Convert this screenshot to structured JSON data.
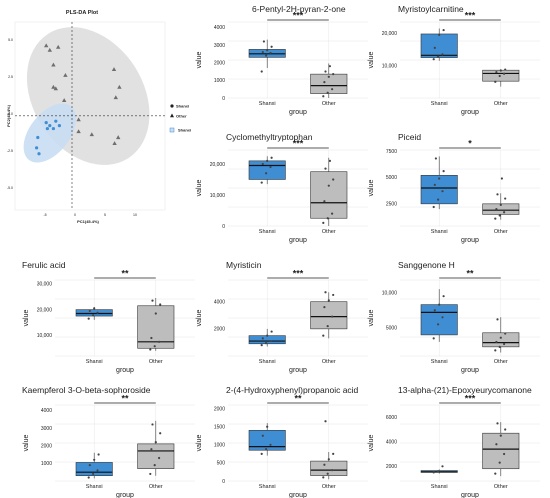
{
  "colors": {
    "shanxi": "#3F8ED4",
    "other": "#BDBDBD",
    "ellipse_shanxi": "#C9DDF3",
    "ellipse_other": "#DCDCDC",
    "grid": "#E6E6E6",
    "axis": "#333333"
  },
  "pls": {
    "title": "PLS-DA Plot",
    "xlabel": "PC1(45.4%)",
    "ylabel": "PC2(45.4%)",
    "xticks": [
      "-5",
      "0",
      "5",
      "10"
    ],
    "yticks": [
      "5.0",
      "2.5",
      "0.0",
      "-2.5",
      "-5.0"
    ],
    "legend": {
      "shanxi": "Shanxi",
      "other": "Other",
      "color_key": "Shanxi"
    }
  },
  "chart_data": [
    {
      "type": "scatter",
      "title": "PLS-DA Plot",
      "xlabel": "PC1(45.4%)",
      "ylabel": "PC2(45.4%)",
      "xlim": [
        -10,
        15
      ],
      "ylim": [
        -6.5,
        6.2
      ],
      "series": [
        {
          "name": "Shanxi",
          "shape": "circle",
          "points": [
            [
              -6.2,
              -1.6
            ],
            [
              -6.4,
              -2.3
            ],
            [
              -4.8,
              -0.6
            ],
            [
              -3.2,
              -0.5
            ],
            [
              -4.2,
              -0.8
            ],
            [
              -2.6,
              -0.8
            ],
            [
              -3.6,
              -1.0
            ],
            [
              -6.0,
              -2.7
            ],
            [
              -4.6,
              -1.0
            ]
          ]
        },
        {
          "name": "Other",
          "shape": "triangle",
          "points": [
            [
              -4.8,
              4.6
            ],
            [
              -4.2,
              4.3
            ],
            [
              -2.8,
              4.5
            ],
            [
              -3.6,
              3.3
            ],
            [
              -1.6,
              2.6
            ],
            [
              -3.2,
              1.7
            ],
            [
              -3.6,
              1.8
            ],
            [
              -1.8,
              0.9
            ],
            [
              0.6,
              -0.4
            ],
            [
              0.6,
              -1.2
            ],
            [
              2.8,
              -1.4
            ],
            [
              6.5,
              3.0
            ],
            [
              7.4,
              1.8
            ],
            [
              6.8,
              1.1
            ],
            [
              7.2,
              -1.6
            ],
            [
              6.6,
              -2.0
            ]
          ]
        }
      ]
    },
    {
      "type": "box",
      "title": "6-Pentyl-2H-pyran-2-one",
      "xlabel": "group",
      "ylabel": "value",
      "categories": [
        "Shanxi",
        "Other"
      ],
      "ylim": [
        0,
        4300
      ],
      "yticks": [
        "0",
        "1000",
        "2000",
        "3000",
        "4000"
      ],
      "significance": "***",
      "boxes": [
        {
          "min": 1700,
          "q1": 2300,
          "median": 2500,
          "q3": 2750,
          "max": 3300
        },
        {
          "min": 0,
          "q1": 250,
          "median": 700,
          "q3": 1350,
          "max": 1950
        }
      ],
      "points": [
        [
          1500,
          2400,
          2550,
          2600,
          2700,
          2900,
          3200
        ],
        [
          100,
          300,
          500,
          900,
          1200,
          1350,
          1500,
          1800
        ]
      ]
    },
    {
      "type": "box",
      "title": "Myristoylcarnitine",
      "xlabel": "group",
      "ylabel": "value",
      "categories": [
        "Shanxi",
        "Other"
      ],
      "ylim": [
        0,
        23500
      ],
      "yticks": [
        "10,000",
        "20,000"
      ],
      "significance": "***",
      "boxes": [
        {
          "min": 11500,
          "q1": 12500,
          "median": 13200,
          "q3": 19800,
          "max": 21500
        },
        {
          "min": 3500,
          "q1": 5200,
          "median": 7600,
          "q3": 8600,
          "max": 8900
        }
      ],
      "points": [
        [
          12000,
          12800,
          13500,
          15500,
          19500,
          21000
        ],
        [
          5000,
          6800,
          7500,
          8000,
          8500,
          8800
        ]
      ]
    },
    {
      "type": "box",
      "title": "Cyclomethyltryptophan",
      "xlabel": "group",
      "ylabel": "value",
      "categories": [
        "Shanxi",
        "Other"
      ],
      "ylim": [
        0,
        24500
      ],
      "yticks": [
        "0",
        "10,000",
        "20,000"
      ],
      "significance": "***",
      "boxes": [
        {
          "min": 13500,
          "q1": 15000,
          "median": 19500,
          "q3": 21000,
          "max": 22500
        },
        {
          "min": 0,
          "q1": 2500,
          "median": 7500,
          "q3": 17500,
          "max": 22000
        }
      ],
      "points": [
        [
          14000,
          17000,
          19000,
          20000,
          21000,
          22000
        ],
        [
          1000,
          2500,
          4000,
          8000,
          13000,
          15000,
          18500,
          21000
        ]
      ]
    },
    {
      "type": "box",
      "title": "Piceid",
      "xlabel": "group",
      "ylabel": "value",
      "categories": [
        "Shanxi",
        "Other"
      ],
      "ylim": [
        400,
        7600
      ],
      "yticks": [
        "2500",
        "5000",
        "7500"
      ],
      "significance": "*",
      "boxes": [
        {
          "min": 2000,
          "q1": 2500,
          "median": 4000,
          "q3": 5200,
          "max": 7000
        },
        {
          "min": 1000,
          "q1": 1500,
          "median": 1900,
          "q3": 2500,
          "max": 3500
        }
      ],
      "points": [
        [
          2200,
          2900,
          3700,
          4300,
          4900,
          5600,
          6800
        ],
        [
          1100,
          1400,
          1700,
          2000,
          2400,
          3000,
          3400,
          4900
        ]
      ]
    },
    {
      "type": "box",
      "title": "Ferulic acid",
      "xlabel": "group",
      "ylabel": "value",
      "categories": [
        "Shanxi",
        "Other"
      ],
      "ylim": [
        2000,
        31500
      ],
      "yticks": [
        "10,000",
        "20,000",
        "30,000"
      ],
      "significance": "**",
      "boxes": [
        {
          "min": 16000,
          "q1": 17500,
          "median": 18500,
          "q3": 20000,
          "max": 21000
        },
        {
          "min": 4000,
          "q1": 5000,
          "median": 7500,
          "q3": 21500,
          "max": 24500
        }
      ],
      "points": [
        [
          16500,
          17800,
          18800,
          19500,
          20500
        ],
        [
          4500,
          5800,
          7500,
          9000,
          18500,
          22000,
          23500
        ]
      ]
    },
    {
      "type": "box",
      "title": "Myristicin",
      "xlabel": "group",
      "ylabel": "value",
      "categories": [
        "Shanxi",
        "Other"
      ],
      "ylim": [
        0,
        5600
      ],
      "yticks": [
        "2000",
        "4000"
      ],
      "significance": "***",
      "boxes": [
        {
          "min": 700,
          "q1": 900,
          "median": 1100,
          "q3": 1500,
          "max": 2000
        },
        {
          "min": 1300,
          "q1": 2000,
          "median": 2900,
          "q3": 4000,
          "max": 4700
        }
      ],
      "points": [
        [
          800,
          950,
          1100,
          1300,
          1500,
          1800
        ],
        [
          1500,
          2200,
          2900,
          3600,
          4100,
          4500,
          4700
        ]
      ]
    },
    {
      "type": "box",
      "title": "Sanggenone H",
      "xlabel": "group",
      "ylabel": "value",
      "categories": [
        "Shanxi",
        "Other"
      ],
      "ylim": [
        1000,
        11800
      ],
      "yticks": [
        "5000",
        "10,000"
      ],
      "significance": "**",
      "boxes": [
        {
          "min": 3000,
          "q1": 4000,
          "median": 7200,
          "q3": 8300,
          "max": 10500
        },
        {
          "min": 1500,
          "q1": 2300,
          "median": 2900,
          "q3": 4300,
          "max": 6500
        }
      ],
      "points": [
        [
          3500,
          5500,
          6500,
          7500,
          8300,
          9500
        ],
        [
          1800,
          2300,
          2700,
          3000,
          3600,
          4200,
          6200
        ]
      ]
    },
    {
      "type": "box",
      "title": "Kaempferol 3-O-beta-sophoroside",
      "xlabel": "group",
      "ylabel": "value",
      "categories": [
        "Shanxi",
        "Other"
      ],
      "ylim": [
        0,
        4300
      ],
      "yticks": [
        "1000",
        "2000",
        "3000",
        "4000"
      ],
      "significance": "**",
      "boxes": [
        {
          "min": 150,
          "q1": 300,
          "median": 500,
          "q3": 1050,
          "max": 1600
        },
        {
          "min": 300,
          "q1": 700,
          "median": 1700,
          "q3": 2100,
          "max": 3400
        }
      ],
      "points": [
        [
          200,
          400,
          600,
          900,
          1200,
          1500
        ],
        [
          400,
          900,
          1300,
          1800,
          2200,
          2700,
          3200
        ]
      ]
    },
    {
      "type": "box",
      "title": "2-(4-Hydroxyphenyl)propanoic acid",
      "xlabel": "group",
      "ylabel": "value",
      "categories": [
        "Shanxi",
        "Other"
      ],
      "ylim": [
        0,
        2100
      ],
      "yticks": [
        "0",
        "500",
        "1000",
        "1500",
        "2000"
      ],
      "significance": "**",
      "boxes": [
        {
          "min": 700,
          "q1": 850,
          "median": 950,
          "q3": 1400,
          "max": 1600
        },
        {
          "min": 50,
          "q1": 150,
          "median": 300,
          "q3": 550,
          "max": 800
        }
      ],
      "points": [
        [
          750,
          880,
          1000,
          1250,
          1500
        ],
        [
          100,
          200,
          300,
          450,
          600,
          750,
          1650
        ]
      ]
    },
    {
      "type": "box",
      "title": "13-alpha-(21)-Epoxyeurycomanone",
      "xlabel": "group",
      "ylabel": "value",
      "categories": [
        "Shanxi",
        "Other"
      ],
      "ylim": [
        800,
        7000
      ],
      "yticks": [
        "2000",
        "4000",
        "6000"
      ],
      "significance": "***",
      "boxes": [
        {
          "min": 1400,
          "q1": 1500,
          "median": 1550,
          "q3": 1650,
          "max": 1750
        },
        {
          "min": 1200,
          "q1": 1800,
          "median": 3400,
          "q3": 4700,
          "max": 5600
        }
      ],
      "points": [
        [
          1500,
          1600,
          2000
        ],
        [
          1400,
          2300,
          3000,
          3800,
          4500,
          5000,
          5500
        ]
      ]
    }
  ]
}
